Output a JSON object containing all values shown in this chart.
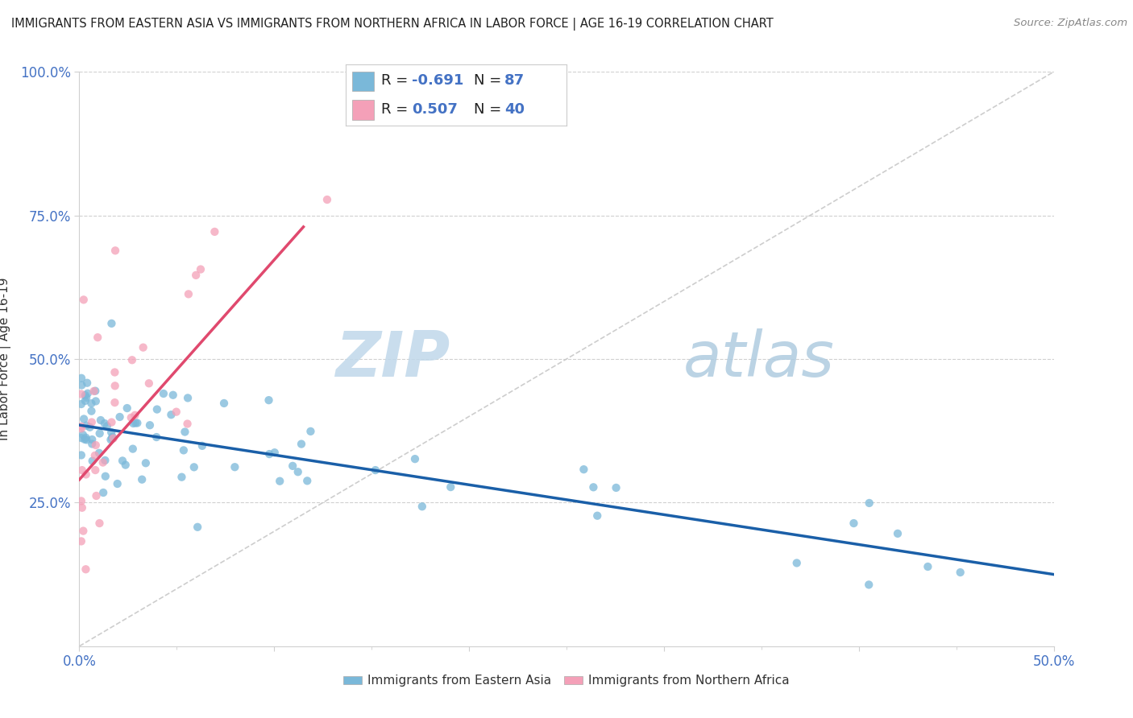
{
  "title": "IMMIGRANTS FROM EASTERN ASIA VS IMMIGRANTS FROM NORTHERN AFRICA IN LABOR FORCE | AGE 16-19 CORRELATION CHART",
  "source_text": "Source: ZipAtlas.com",
  "ylabel": "In Labor Force | Age 16-19",
  "xlim": [
    0.0,
    0.5
  ],
  "ylim": [
    0.0,
    1.0
  ],
  "ytick_values": [
    0.25,
    0.5,
    0.75,
    1.0
  ],
  "ytick_labels": [
    "25.0%",
    "50.0%",
    "75.0%",
    "100.0%"
  ],
  "xtick_values": [
    0.0,
    0.1,
    0.2,
    0.3,
    0.4,
    0.5
  ],
  "xtick_labels": [
    "0.0%",
    "",
    "",
    "",
    "",
    "50.0%"
  ],
  "R_blue": -0.691,
  "N_blue": 87,
  "R_pink": 0.507,
  "N_pink": 40,
  "blue_color": "#7ab8d9",
  "pink_color": "#f4a0b8",
  "blue_line_color": "#1a5fa8",
  "pink_line_color": "#e0496e",
  "ref_line_color": "#c8c8c8",
  "watermark_zip_color": "#c5dff0",
  "watermark_atlas_color": "#b8d4e8",
  "background_color": "#ffffff",
  "grid_color": "#d0d0d0",
  "tick_color": "#4472c4",
  "legend_R_N_color": "#4472c4",
  "title_color": "#222222",
  "source_color": "#888888",
  "ylabel_color": "#333333",
  "blue_trend_x0": 0.0,
  "blue_trend_y0": 0.385,
  "blue_trend_x1": 0.5,
  "blue_trend_y1": 0.125,
  "pink_trend_x0": 0.0,
  "pink_trend_y0": 0.29,
  "pink_trend_x1": 0.115,
  "pink_trend_y1": 0.73
}
